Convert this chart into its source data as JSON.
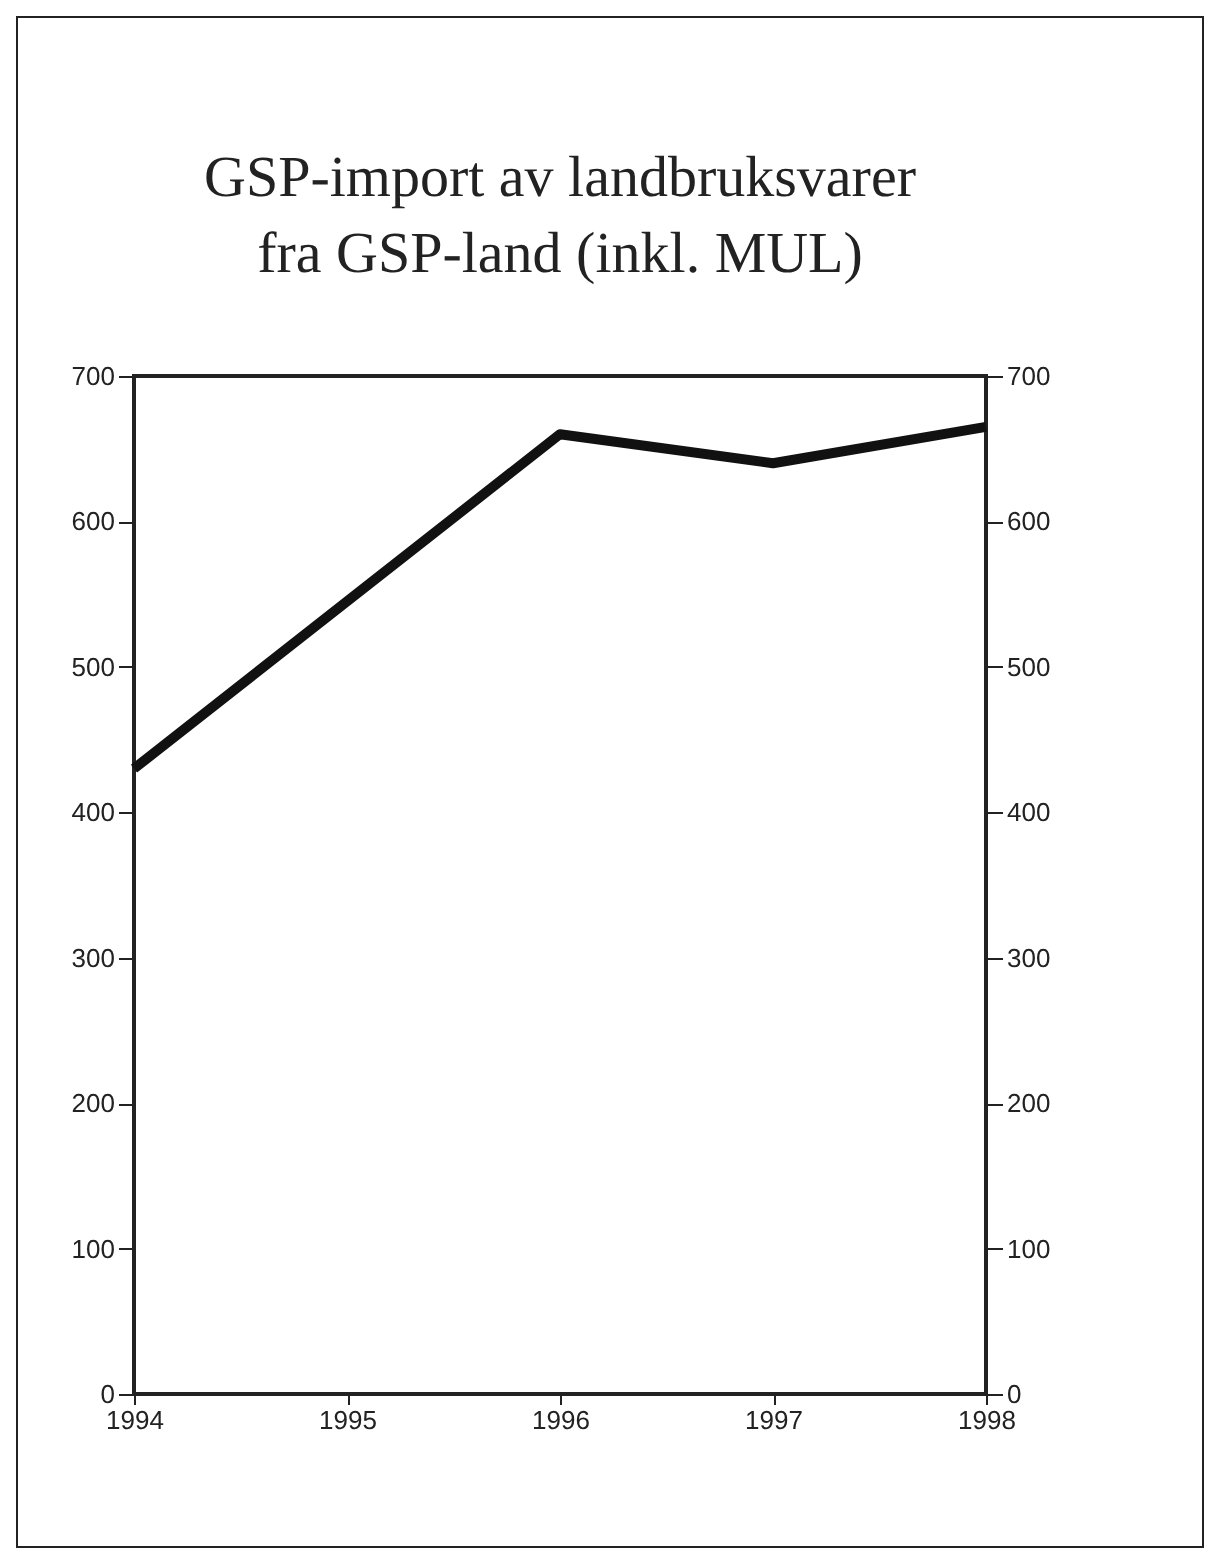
{
  "chart_data": {
    "type": "line",
    "title": "GSP-import av landbruksvarer\nfra GSP-land (inkl. MUL)",
    "x": [
      1994,
      1996,
      1997,
      1998
    ],
    "series": [
      {
        "color": "#111111",
        "values": [
          430,
          660,
          640,
          665
        ]
      }
    ],
    "xlim": [
      1994,
      1998
    ],
    "xticks": [
      1994,
      1995,
      1996,
      1997,
      1998
    ],
    "ylim": [
      0,
      700
    ],
    "yticks": [
      0,
      100,
      200,
      300,
      400,
      500,
      600,
      700
    ],
    "y2lim": [
      0,
      700
    ],
    "y2ticks": [
      0,
      100,
      200,
      300,
      400,
      500,
      600,
      700
    ],
    "grid": false,
    "marker": "none",
    "line_style": "solid"
  }
}
